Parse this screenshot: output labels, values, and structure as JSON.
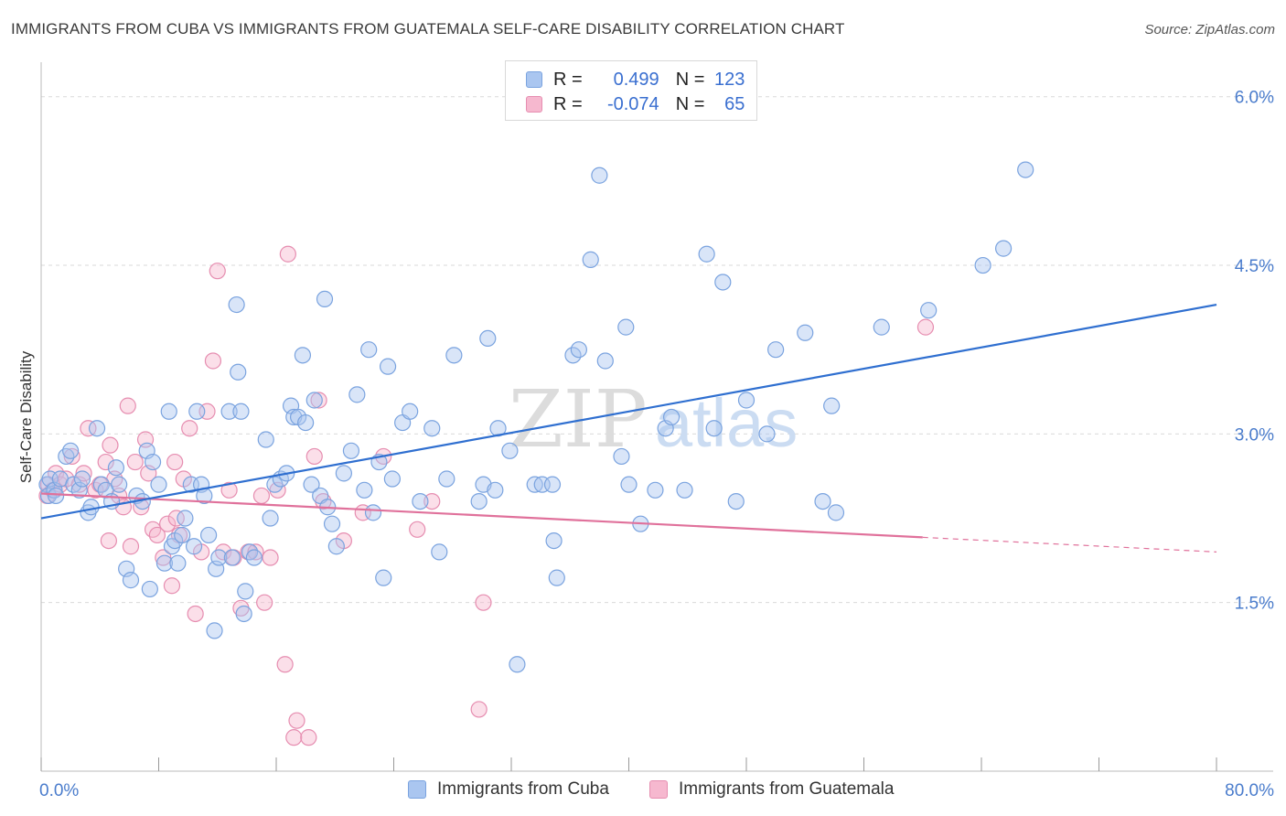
{
  "title": "IMMIGRANTS FROM CUBA VS IMMIGRANTS FROM GUATEMALA SELF-CARE DISABILITY CORRELATION CHART",
  "source": "Source: ZipAtlas.com",
  "watermark": {
    "zip": "ZIP",
    "atlas": "atlas"
  },
  "legend": {
    "rows": [
      {
        "r_label": "R =",
        "r_value": "0.499",
        "n_label": "N =",
        "n_value": "123"
      },
      {
        "r_label": "R =",
        "r_value": "-0.074",
        "n_label": "N =",
        "n_value": "65"
      }
    ]
  },
  "colors": {
    "cuba_fill": "#aac6f0",
    "cuba_stroke": "#7aa3df",
    "cuba_line": "#2f6fd0",
    "guatemala_fill": "#f6b8cf",
    "guatemala_stroke": "#e68db0",
    "guatemala_line": "#e0719b",
    "axis_text": "#4a7ccc",
    "grid": "#d9d9d9"
  },
  "chart_data": {
    "type": "scatter",
    "title": "IMMIGRANTS FROM CUBA VS IMMIGRANTS FROM GUATEMALA SELF-CARE DISABILITY CORRELATION CHART",
    "xlabel": "",
    "ylabel": "Self-Care Disability",
    "xlim": [
      0,
      80
    ],
    "ylim": [
      0,
      6.25
    ],
    "x_tick_labels": [
      "0.0%",
      "80.0%"
    ],
    "y_ticks": [
      1.5,
      3.0,
      4.5,
      6.0
    ],
    "y_tick_labels": [
      "1.5%",
      "3.0%",
      "4.5%",
      "6.0%"
    ],
    "grid": "horizontal dashed",
    "legend_position": "top-center",
    "series": [
      {
        "name": "Immigrants from Cuba",
        "stats": {
          "R": 0.499,
          "N": 123
        },
        "trend": {
          "x": [
            0,
            80
          ],
          "y": [
            2.25,
            4.15
          ],
          "dashed_from": null
        },
        "points": [
          [
            0.4,
            2.55
          ],
          [
            0.5,
            2.45
          ],
          [
            0.6,
            2.6
          ],
          [
            0.9,
            2.5
          ],
          [
            1.0,
            2.45
          ],
          [
            1.3,
            2.6
          ],
          [
            1.7,
            2.8
          ],
          [
            2.0,
            2.85
          ],
          [
            2.2,
            2.55
          ],
          [
            2.6,
            2.5
          ],
          [
            2.8,
            2.6
          ],
          [
            3.2,
            2.3
          ],
          [
            3.4,
            2.35
          ],
          [
            3.8,
            3.05
          ],
          [
            4.1,
            2.55
          ],
          [
            4.4,
            2.5
          ],
          [
            4.8,
            2.4
          ],
          [
            5.1,
            2.7
          ],
          [
            5.3,
            2.55
          ],
          [
            5.8,
            1.8
          ],
          [
            6.1,
            1.7
          ],
          [
            6.5,
            2.45
          ],
          [
            6.9,
            2.4
          ],
          [
            7.2,
            2.85
          ],
          [
            7.4,
            1.62
          ],
          [
            7.6,
            2.75
          ],
          [
            8.0,
            2.55
          ],
          [
            8.4,
            1.85
          ],
          [
            8.7,
            3.2
          ],
          [
            8.9,
            2.0
          ],
          [
            9.1,
            2.05
          ],
          [
            9.3,
            1.85
          ],
          [
            9.6,
            2.1
          ],
          [
            9.8,
            2.25
          ],
          [
            10.2,
            2.55
          ],
          [
            10.4,
            2.0
          ],
          [
            10.6,
            3.2
          ],
          [
            10.9,
            2.55
          ],
          [
            11.1,
            2.45
          ],
          [
            11.4,
            2.1
          ],
          [
            11.8,
            1.25
          ],
          [
            11.9,
            1.8
          ],
          [
            12.1,
            1.9
          ],
          [
            12.8,
            3.2
          ],
          [
            13.0,
            1.9
          ],
          [
            13.3,
            4.15
          ],
          [
            13.4,
            3.55
          ],
          [
            13.6,
            3.2
          ],
          [
            13.8,
            1.4
          ],
          [
            13.9,
            1.6
          ],
          [
            14.2,
            1.95
          ],
          [
            14.5,
            1.9
          ],
          [
            15.3,
            2.95
          ],
          [
            15.6,
            2.25
          ],
          [
            15.9,
            2.55
          ],
          [
            16.3,
            2.6
          ],
          [
            16.7,
            2.65
          ],
          [
            17.0,
            3.25
          ],
          [
            17.2,
            3.15
          ],
          [
            17.5,
            3.15
          ],
          [
            17.8,
            3.7
          ],
          [
            18.0,
            3.1
          ],
          [
            18.4,
            2.55
          ],
          [
            18.6,
            3.3
          ],
          [
            19.0,
            2.45
          ],
          [
            19.3,
            4.2
          ],
          [
            19.5,
            2.35
          ],
          [
            19.8,
            2.2
          ],
          [
            20.1,
            2.0
          ],
          [
            20.6,
            2.65
          ],
          [
            21.1,
            2.85
          ],
          [
            21.5,
            3.35
          ],
          [
            22.0,
            2.5
          ],
          [
            22.3,
            3.75
          ],
          [
            22.6,
            2.3
          ],
          [
            23.0,
            2.75
          ],
          [
            23.3,
            1.72
          ],
          [
            23.6,
            3.6
          ],
          [
            23.9,
            2.6
          ],
          [
            24.6,
            3.1
          ],
          [
            25.1,
            3.2
          ],
          [
            25.8,
            2.4
          ],
          [
            26.6,
            3.05
          ],
          [
            27.1,
            1.95
          ],
          [
            27.6,
            2.6
          ],
          [
            28.1,
            3.7
          ],
          [
            29.8,
            2.4
          ],
          [
            30.1,
            2.55
          ],
          [
            30.4,
            3.85
          ],
          [
            30.9,
            2.5
          ],
          [
            31.1,
            3.05
          ],
          [
            31.9,
            2.85
          ],
          [
            32.4,
            0.95
          ],
          [
            33.6,
            2.55
          ],
          [
            34.1,
            2.55
          ],
          [
            34.9,
            2.05
          ],
          [
            35.1,
            1.72
          ],
          [
            36.2,
            3.7
          ],
          [
            36.6,
            3.75
          ],
          [
            37.4,
            4.55
          ],
          [
            38.0,
            5.3
          ],
          [
            38.4,
            3.65
          ],
          [
            39.5,
            2.8
          ],
          [
            39.8,
            3.95
          ],
          [
            40.0,
            2.55
          ],
          [
            40.8,
            2.2
          ],
          [
            41.8,
            2.5
          ],
          [
            42.5,
            3.05
          ],
          [
            42.9,
            3.15
          ],
          [
            43.8,
            2.5
          ],
          [
            45.3,
            4.6
          ],
          [
            45.8,
            3.05
          ],
          [
            46.4,
            4.35
          ],
          [
            47.3,
            2.4
          ],
          [
            48.0,
            3.3
          ],
          [
            49.4,
            3.0
          ],
          [
            50.0,
            3.75
          ],
          [
            52.0,
            3.9
          ],
          [
            53.2,
            2.4
          ],
          [
            53.8,
            3.25
          ],
          [
            54.1,
            2.3
          ],
          [
            57.2,
            3.95
          ],
          [
            60.4,
            4.1
          ],
          [
            64.1,
            4.5
          ],
          [
            65.5,
            4.65
          ],
          [
            67.0,
            5.35
          ],
          [
            34.8,
            2.55
          ]
        ]
      },
      {
        "name": "Immigrants from Guatemala",
        "stats": {
          "R": -0.074,
          "N": 65
        },
        "trend": {
          "x": [
            0,
            80
          ],
          "y": [
            2.47,
            1.95
          ],
          "dashed_from": 60
        },
        "points": [
          [
            0.4,
            2.45
          ],
          [
            0.5,
            2.55
          ],
          [
            0.8,
            2.5
          ],
          [
            1.0,
            2.65
          ],
          [
            1.3,
            2.55
          ],
          [
            1.7,
            2.6
          ],
          [
            2.1,
            2.8
          ],
          [
            2.6,
            2.55
          ],
          [
            2.9,
            2.65
          ],
          [
            3.2,
            3.05
          ],
          [
            3.7,
            2.5
          ],
          [
            4.0,
            2.55
          ],
          [
            4.4,
            2.75
          ],
          [
            4.7,
            2.9
          ],
          [
            5.0,
            2.6
          ],
          [
            5.3,
            2.45
          ],
          [
            5.6,
            2.35
          ],
          [
            5.9,
            3.25
          ],
          [
            6.1,
            2.0
          ],
          [
            6.4,
            2.75
          ],
          [
            6.8,
            2.35
          ],
          [
            7.1,
            2.95
          ],
          [
            7.3,
            2.65
          ],
          [
            7.6,
            2.15
          ],
          [
            7.9,
            2.1
          ],
          [
            8.3,
            1.9
          ],
          [
            8.6,
            2.2
          ],
          [
            8.9,
            1.65
          ],
          [
            9.1,
            2.75
          ],
          [
            9.4,
            2.1
          ],
          [
            9.7,
            2.6
          ],
          [
            10.1,
            3.05
          ],
          [
            10.5,
            1.4
          ],
          [
            10.9,
            1.95
          ],
          [
            11.3,
            3.2
          ],
          [
            11.7,
            3.65
          ],
          [
            12.0,
            4.45
          ],
          [
            12.4,
            1.95
          ],
          [
            12.8,
            2.5
          ],
          [
            13.1,
            1.9
          ],
          [
            13.6,
            1.45
          ],
          [
            14.1,
            1.95
          ],
          [
            14.6,
            1.95
          ],
          [
            15.0,
            2.45
          ],
          [
            15.2,
            1.5
          ],
          [
            15.6,
            1.9
          ],
          [
            16.1,
            2.5
          ],
          [
            16.6,
            0.95
          ],
          [
            16.8,
            4.6
          ],
          [
            17.2,
            0.3
          ],
          [
            17.4,
            0.45
          ],
          [
            18.2,
            0.3
          ],
          [
            18.6,
            2.8
          ],
          [
            18.9,
            3.3
          ],
          [
            19.2,
            2.4
          ],
          [
            20.6,
            2.05
          ],
          [
            21.9,
            2.3
          ],
          [
            23.3,
            2.8
          ],
          [
            25.6,
            2.15
          ],
          [
            29.8,
            0.55
          ],
          [
            30.1,
            1.5
          ],
          [
            60.2,
            3.95
          ],
          [
            4.6,
            2.05
          ],
          [
            9.2,
            2.25
          ],
          [
            26.6,
            2.4
          ]
        ]
      }
    ]
  },
  "bottom_legend": [
    "Immigrants from Cuba",
    "Immigrants from Guatemala"
  ],
  "x_axis": {
    "left_label": "0.0%",
    "right_label": "80.0%"
  }
}
